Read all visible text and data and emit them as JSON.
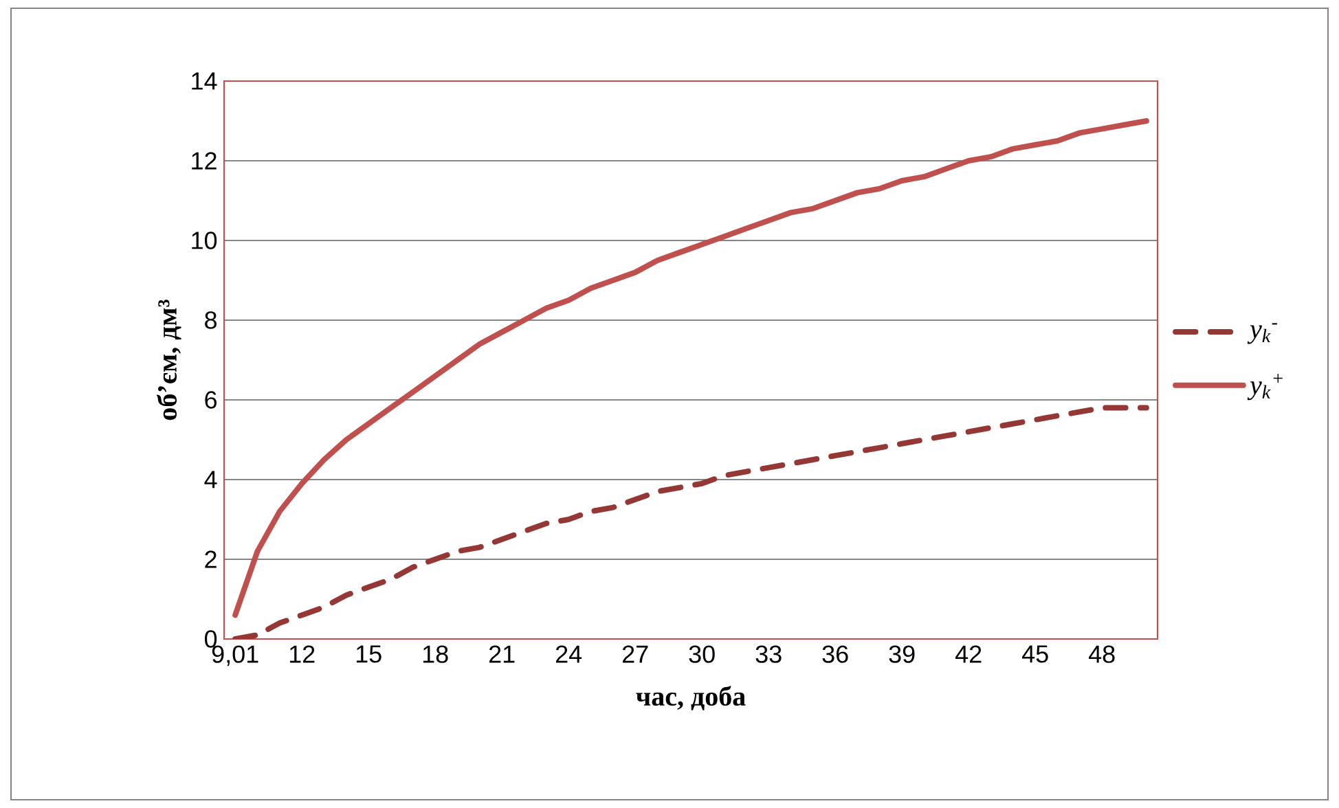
{
  "chart_data": {
    "type": "line",
    "xlabel": "час, доба",
    "ylabel": "об’єм, дм³",
    "categories": [
      "9,01",
      null,
      null,
      "12",
      null,
      null,
      "15",
      null,
      null,
      "18",
      null,
      null,
      "21",
      null,
      null,
      "24",
      null,
      null,
      "27",
      null,
      null,
      "30",
      null,
      null,
      "33",
      null,
      null,
      "36",
      null,
      null,
      "39",
      null,
      null,
      "42",
      null,
      null,
      "45",
      null,
      null,
      "48",
      null,
      null
    ],
    "series": [
      {
        "name": "y$_{k}$$^{-}$",
        "color": "#953735",
        "line_style": "dashed",
        "values": [
          0.0,
          0.1,
          0.4,
          0.6,
          0.8,
          1.1,
          1.3,
          1.5,
          1.8,
          2.0,
          2.2,
          2.3,
          2.5,
          2.7,
          2.9,
          3.0,
          3.2,
          3.3,
          3.5,
          3.7,
          3.8,
          3.9,
          4.1,
          4.2,
          4.3,
          4.4,
          4.5,
          4.6,
          4.7,
          4.8,
          4.9,
          5.0,
          5.1,
          5.2,
          5.3,
          5.4,
          5.5,
          5.6,
          5.7,
          5.8,
          5.8,
          5.8
        ]
      },
      {
        "name": "y$_{k}$$^{+}$",
        "color": "#c0504d",
        "line_style": "solid",
        "values": [
          0.6,
          2.2,
          3.2,
          3.9,
          4.5,
          5.0,
          5.4,
          5.8,
          6.2,
          6.6,
          7.0,
          7.4,
          7.7,
          8.0,
          8.3,
          8.5,
          8.8,
          9.0,
          9.2,
          9.5,
          9.7,
          9.9,
          10.1,
          10.3,
          10.5,
          10.7,
          10.8,
          11.0,
          11.2,
          11.3,
          11.5,
          11.6,
          11.8,
          12.0,
          12.1,
          12.3,
          12.4,
          12.5,
          12.7,
          12.8,
          12.9,
          13.0
        ]
      }
    ],
    "ylim": [
      0,
      14
    ],
    "yticks": [
      0,
      2,
      4,
      6,
      8,
      10,
      12,
      14
    ],
    "grid": "y",
    "legend": "right"
  }
}
